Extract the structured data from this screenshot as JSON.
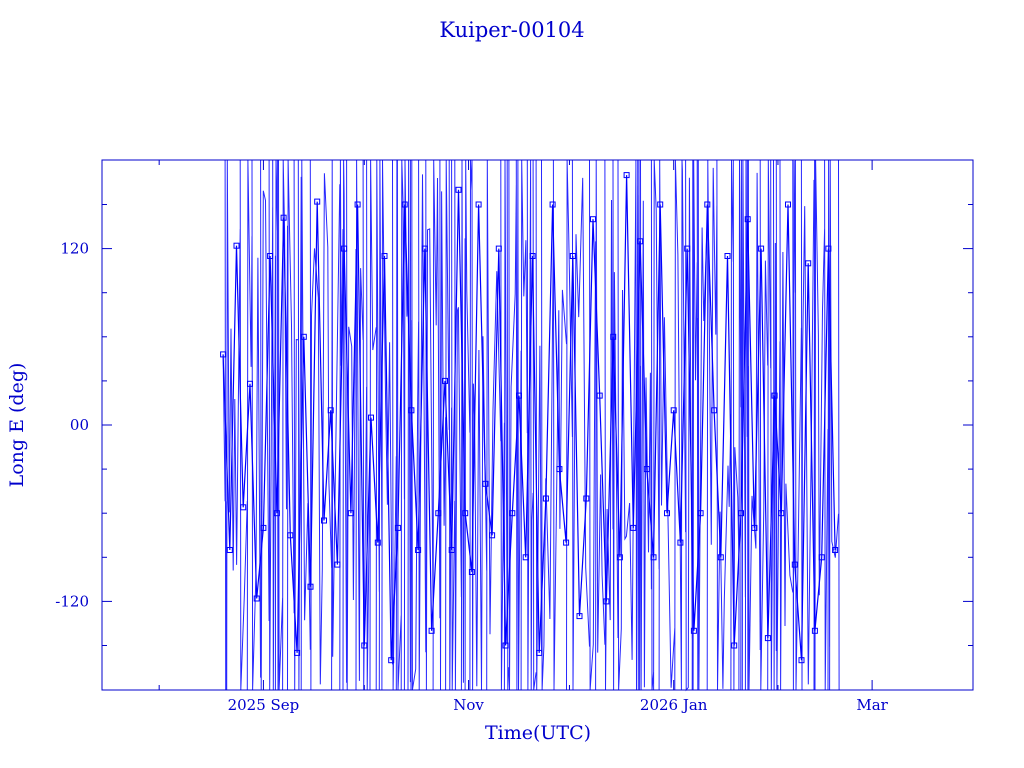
{
  "chart_data": {
    "type": "scatter",
    "title": "Kuiper-00104",
    "xlabel": "Time(UTC)",
    "ylabel": "Long E (deg)",
    "x_range": [
      "2025-07-15",
      "2026-03-31"
    ],
    "ylim": [
      -180,
      180
    ],
    "x_tick_labels": [
      {
        "date": "2025-09-01",
        "label": "2025 Sep"
      },
      {
        "date": "2025-11-01",
        "label": "Nov"
      },
      {
        "date": "2026-01-01",
        "label": "2026 Jan"
      },
      {
        "date": "2026-03-01",
        "label": "Mar"
      }
    ],
    "y_ticks": [
      {
        "value": 120,
        "label": "120"
      },
      {
        "value": 0,
        "label": "00"
      },
      {
        "value": -120,
        "label": "-120"
      }
    ],
    "grid": false,
    "legend": "none",
    "marker": "square",
    "line_connected": true,
    "color": "#0000ff",
    "data_start": "2025-08-20",
    "data_end": "2026-02-19",
    "series": [
      {
        "x": [
          "2025-08-20",
          "2025-08-22",
          "2025-08-24",
          "2025-08-26",
          "2025-08-28",
          "2025-08-30",
          "2025-09-01",
          "2025-09-03",
          "2025-09-05",
          "2025-09-07",
          "2025-09-09",
          "2025-09-11",
          "2025-09-13",
          "2025-09-15",
          "2025-09-17",
          "2025-09-19",
          "2025-09-21",
          "2025-09-23",
          "2025-09-25",
          "2025-09-27",
          "2025-09-29",
          "2025-10-01",
          "2025-10-03",
          "2025-10-05",
          "2025-10-07",
          "2025-10-09",
          "2025-10-11",
          "2025-10-13",
          "2025-10-15",
          "2025-10-17",
          "2025-10-19",
          "2025-10-21",
          "2025-10-23",
          "2025-10-25",
          "2025-10-27",
          "2025-10-29",
          "2025-10-31",
          "2025-11-02",
          "2025-11-04",
          "2025-11-06",
          "2025-11-08",
          "2025-11-10",
          "2025-11-12",
          "2025-11-14",
          "2025-11-16",
          "2025-11-18",
          "2025-11-20",
          "2025-11-22",
          "2025-11-24",
          "2025-11-26",
          "2025-11-28",
          "2025-11-30",
          "2025-12-02",
          "2025-12-04",
          "2025-12-06",
          "2025-12-08",
          "2025-12-10",
          "2025-12-12",
          "2025-12-14",
          "2025-12-16",
          "2025-12-18",
          "2025-12-20",
          "2025-12-22",
          "2025-12-24",
          "2025-12-26",
          "2025-12-28",
          "2025-12-30",
          "2026-01-01",
          "2026-01-03",
          "2026-01-05",
          "2026-01-07",
          "2026-01-09",
          "2026-01-11",
          "2026-01-13",
          "2026-01-15",
          "2026-01-17",
          "2026-01-19",
          "2026-01-21",
          "2026-01-23",
          "2026-01-25",
          "2026-01-27",
          "2026-01-29",
          "2026-01-31",
          "2026-02-02",
          "2026-02-04",
          "2026-02-06",
          "2026-02-08",
          "2026-02-10",
          "2026-02-12",
          "2026-02-14",
          "2026-02-16",
          "2026-02-18"
        ],
        "y": [
          48,
          -85,
          122,
          -56,
          28,
          -118,
          -70,
          115,
          -60,
          141,
          -75,
          -155,
          60,
          -110,
          152,
          -65,
          10,
          -95,
          120,
          -60,
          150,
          -150,
          5,
          -80,
          115,
          -160,
          -70,
          150,
          10,
          -85,
          120,
          -140,
          -60,
          30,
          -85,
          160,
          -60,
          -100,
          150,
          -40,
          -75,
          120,
          -150,
          -60,
          20,
          -90,
          115,
          -155,
          -50,
          150,
          -30,
          -80,
          115,
          -130,
          -50,
          140,
          20,
          -120,
          60,
          -90,
          170,
          -70,
          125,
          -30,
          -90,
          150,
          -60,
          10,
          -80,
          120,
          -140,
          -60,
          150,
          10,
          -90,
          115,
          -150,
          -60,
          140,
          -70,
          120,
          -145,
          20,
          -60,
          150,
          -95,
          -160,
          110,
          -140,
          -90,
          120,
          -85
        ]
      }
    ]
  }
}
